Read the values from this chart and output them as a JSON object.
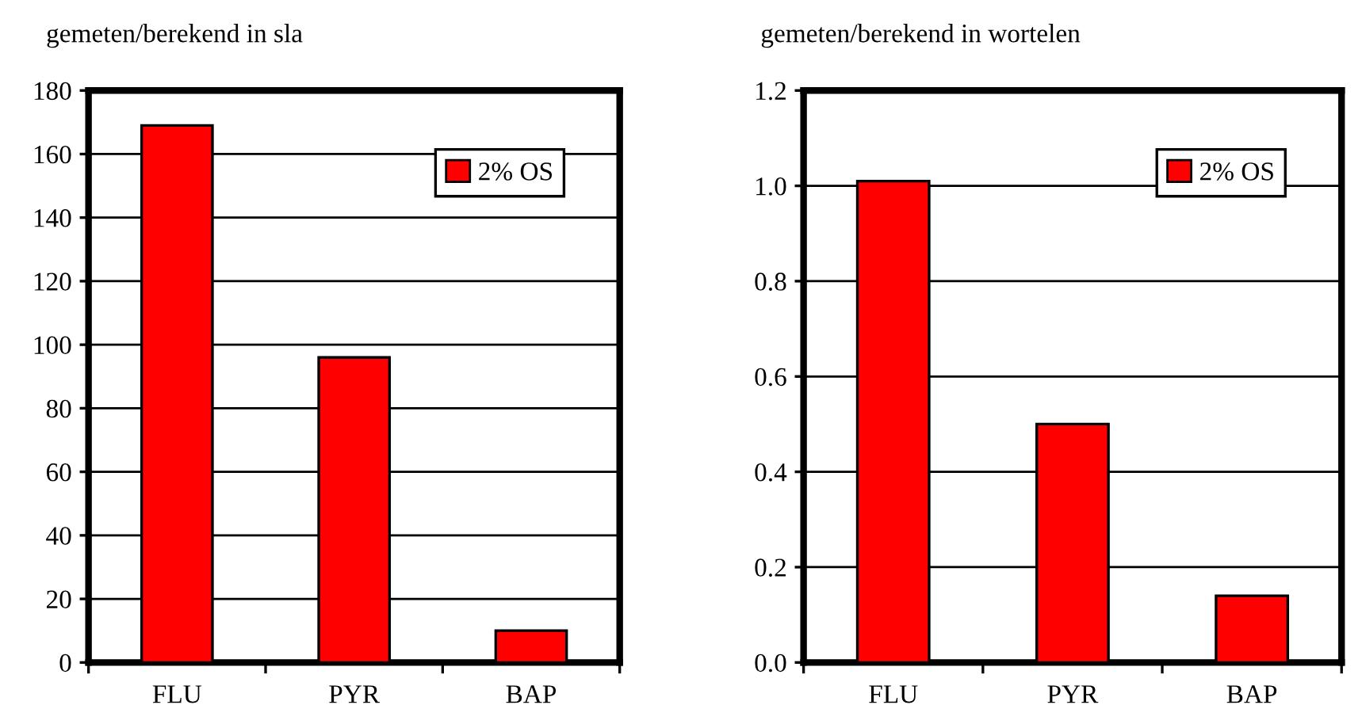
{
  "chart_data": [
    {
      "type": "bar",
      "title": "gemeten/berekend in sla",
      "categories": [
        "FLU",
        "PYR",
        "BAP"
      ],
      "series": [
        {
          "name": "2% OS",
          "color": "#ff0000",
          "values": [
            169,
            96,
            10
          ]
        }
      ],
      "ylim": [
        0,
        180
      ],
      "yticks": [
        0,
        20,
        40,
        60,
        80,
        100,
        120,
        140,
        160,
        180
      ],
      "grid": "y",
      "legend": "top right"
    },
    {
      "type": "bar",
      "title": "gemeten/berekend in wortelen",
      "categories": [
        "FLU",
        "PYR",
        "BAP"
      ],
      "series": [
        {
          "name": "2% OS",
          "color": "#ff0000",
          "values": [
            1.01,
            0.5,
            0.14
          ]
        }
      ],
      "ylim": [
        0,
        1.2
      ],
      "yticks": [
        {
          "value": 0,
          "label": "0.0"
        },
        0.2,
        0.4,
        0.6,
        0.8,
        {
          "value": 1,
          "label": "1.0"
        },
        1.2
      ],
      "grid": "y",
      "legend": "top right"
    }
  ]
}
